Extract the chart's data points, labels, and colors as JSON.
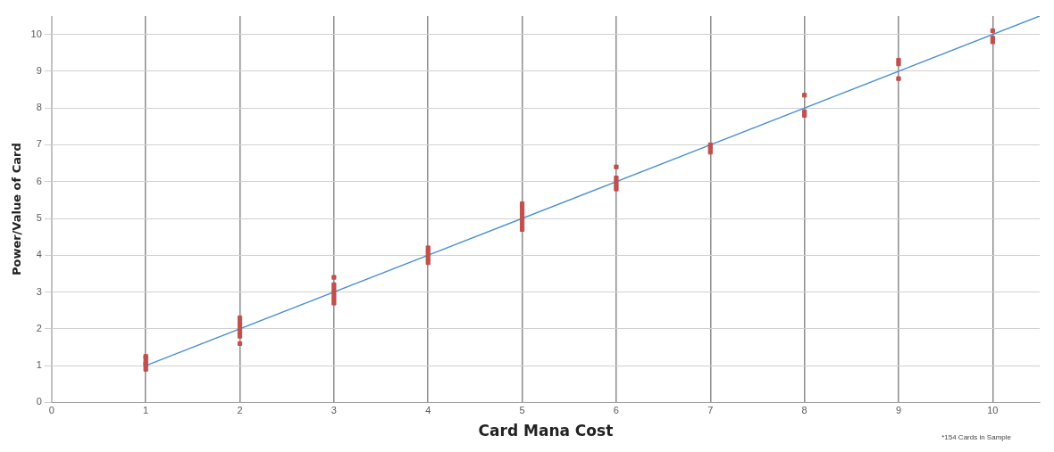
{
  "chart_data": {
    "type": "scatter",
    "xlabel": "Card Mana Cost",
    "ylabel": "Power/Value of Card",
    "xlim": [
      0,
      10.5
    ],
    "xticks": [
      0,
      1,
      2,
      3,
      4,
      5,
      6,
      7,
      8,
      9,
      10
    ],
    "ylim": [
      0,
      10.5
    ],
    "yticks": [
      0,
      1,
      2,
      3,
      4,
      5,
      6,
      7,
      8,
      9,
      10
    ],
    "grid": true,
    "legend": false,
    "annotations": [
      "*154 Cards in Sample"
    ],
    "series": [
      {
        "type": "scatter",
        "marker": "square",
        "color": "#c0504d",
        "x": [
          1,
          1,
          1,
          1,
          1,
          1,
          2,
          2,
          2,
          2,
          2,
          2,
          2,
          3,
          3,
          3,
          3,
          3,
          3,
          3,
          4,
          4,
          4,
          4,
          4,
          5,
          5,
          5,
          5,
          5,
          5,
          5,
          5,
          6,
          6,
          6,
          6,
          6,
          7,
          7,
          7,
          8,
          8,
          8,
          9,
          9,
          9,
          10,
          10,
          10
        ],
        "values": [
          0.9,
          1.0,
          1.05,
          1.1,
          1.2,
          1.25,
          1.6,
          1.8,
          1.9,
          2.0,
          2.1,
          2.2,
          2.3,
          2.7,
          2.8,
          2.9,
          3.0,
          3.1,
          3.2,
          3.4,
          3.8,
          3.9,
          4.0,
          4.1,
          4.2,
          4.7,
          4.8,
          4.9,
          5.0,
          5.1,
          5.2,
          5.3,
          5.4,
          5.8,
          5.9,
          6.0,
          6.1,
          6.4,
          6.8,
          6.9,
          7.0,
          7.8,
          7.9,
          8.35,
          8.8,
          9.2,
          9.3,
          9.8,
          9.9,
          10.1
        ]
      },
      {
        "type": "line",
        "color": "#4a90d0",
        "x": [
          1,
          10.5
        ],
        "values": [
          1,
          10.5
        ]
      }
    ]
  }
}
